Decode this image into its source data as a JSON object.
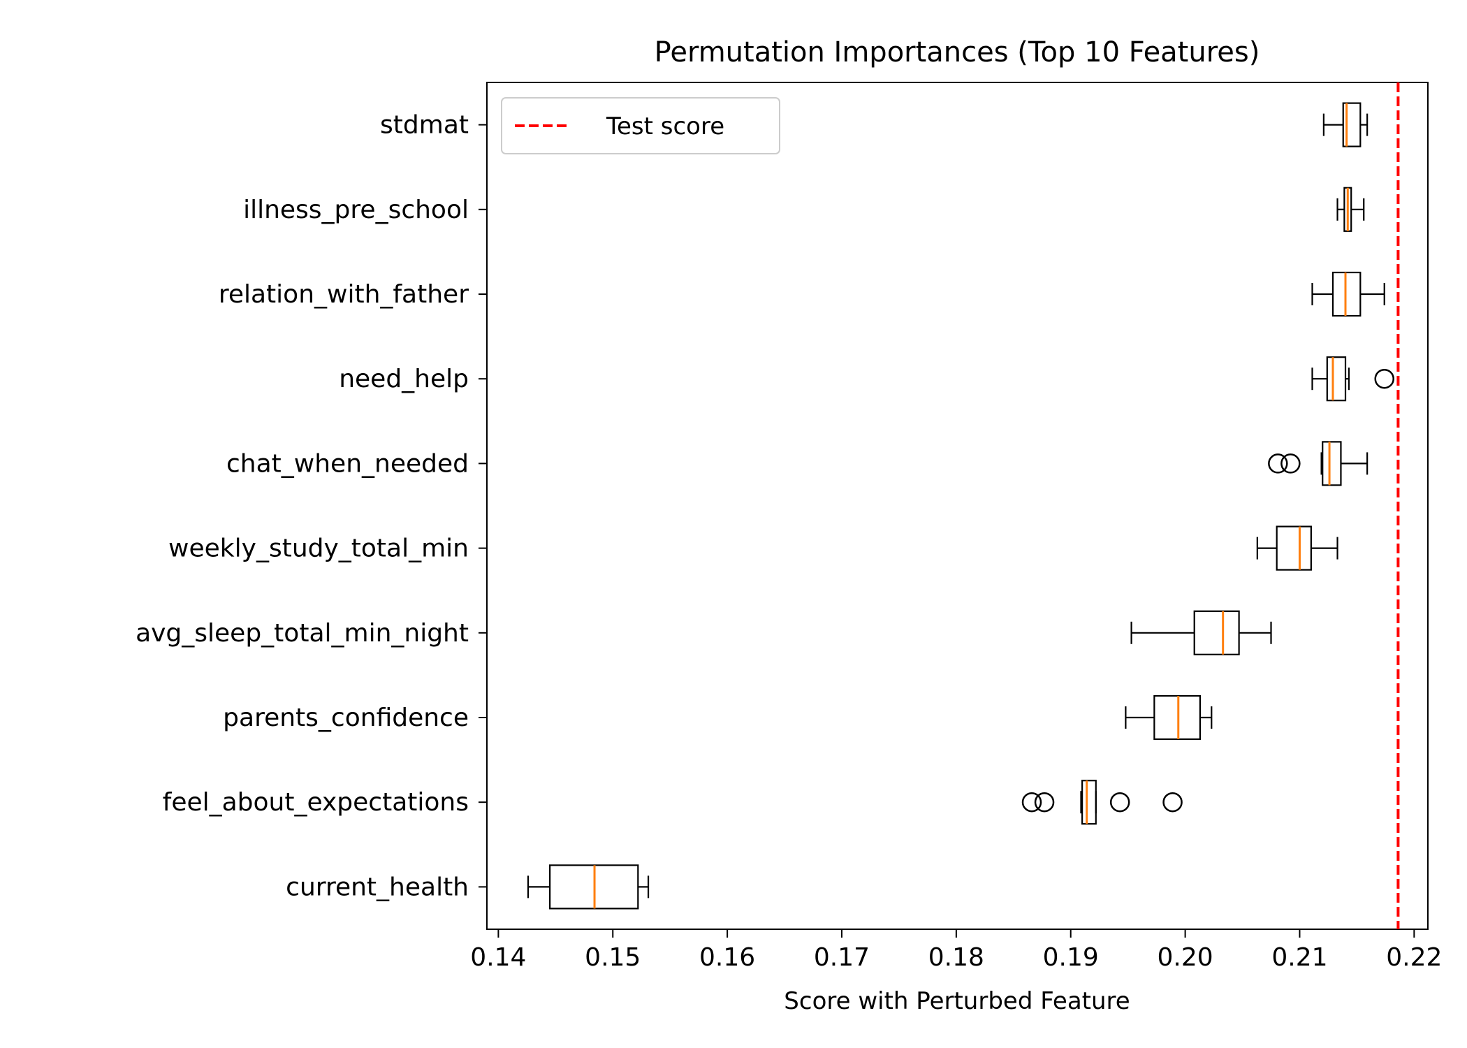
{
  "chart_data": {
    "type": "boxplot",
    "orientation": "horizontal",
    "title": "Permutation Importances (Top 10 Features)",
    "xlabel": "Score with Perturbed Feature",
    "ylabel": "",
    "xlim": [
      0.139,
      0.2212
    ],
    "xticks": [
      0.14,
      0.15,
      0.16,
      0.17,
      0.18,
      0.19,
      0.2,
      0.21,
      0.22
    ],
    "xtick_labels": [
      "0.14",
      "0.15",
      "0.16",
      "0.17",
      "0.18",
      "0.19",
      "0.20",
      "0.21",
      "0.22"
    ],
    "grid": false,
    "legend": {
      "position": "top-left",
      "entries": [
        {
          "label": "Test score",
          "color": "#ff0000",
          "style": "dashed"
        }
      ]
    },
    "reference_line": {
      "label": "Test score",
      "value": 0.2186,
      "color": "#ff0000"
    },
    "colors": {
      "box": "#000000",
      "median": "#ff7f0e"
    },
    "categories": [
      "stdmat",
      "illness_pre_school",
      "relation_with_father",
      "need_help",
      "chat_when_needed",
      "weekly_study_total_min",
      "avg_sleep_total_min_night",
      "parents_confidence",
      "feel_about_expectations",
      "current_health"
    ],
    "boxes": [
      {
        "whisker_low": 0.2121,
        "q1": 0.2138,
        "median": 0.2141,
        "q3": 0.2153,
        "whisker_high": 0.2159,
        "outliers": []
      },
      {
        "whisker_low": 0.2133,
        "q1": 0.2139,
        "median": 0.2142,
        "q3": 0.2145,
        "whisker_high": 0.2156,
        "outliers": []
      },
      {
        "whisker_low": 0.2111,
        "q1": 0.2129,
        "median": 0.214,
        "q3": 0.2153,
        "whisker_high": 0.2174,
        "outliers": []
      },
      {
        "whisker_low": 0.2111,
        "q1": 0.2124,
        "median": 0.2129,
        "q3": 0.214,
        "whisker_high": 0.2143,
        "outliers": [
          0.2174
        ]
      },
      {
        "whisker_low": 0.2119,
        "q1": 0.212,
        "median": 0.2126,
        "q3": 0.2136,
        "whisker_high": 0.2159,
        "outliers": [
          0.2081,
          0.2092
        ]
      },
      {
        "whisker_low": 0.2063,
        "q1": 0.208,
        "median": 0.21,
        "q3": 0.211,
        "whisker_high": 0.2133,
        "outliers": []
      },
      {
        "whisker_low": 0.1953,
        "q1": 0.2008,
        "median": 0.2033,
        "q3": 0.2047,
        "whisker_high": 0.2075,
        "outliers": []
      },
      {
        "whisker_low": 0.1948,
        "q1": 0.1973,
        "median": 0.1994,
        "q3": 0.2013,
        "whisker_high": 0.2023,
        "outliers": []
      },
      {
        "whisker_low": 0.1909,
        "q1": 0.191,
        "median": 0.1914,
        "q3": 0.1922,
        "whisker_high": 0.1922,
        "outliers": [
          0.1866,
          0.1877,
          0.1943,
          0.1989
        ]
      },
      {
        "whisker_low": 0.1426,
        "q1": 0.1445,
        "median": 0.1484,
        "q3": 0.1522,
        "whisker_high": 0.1531,
        "outliers": []
      }
    ]
  }
}
